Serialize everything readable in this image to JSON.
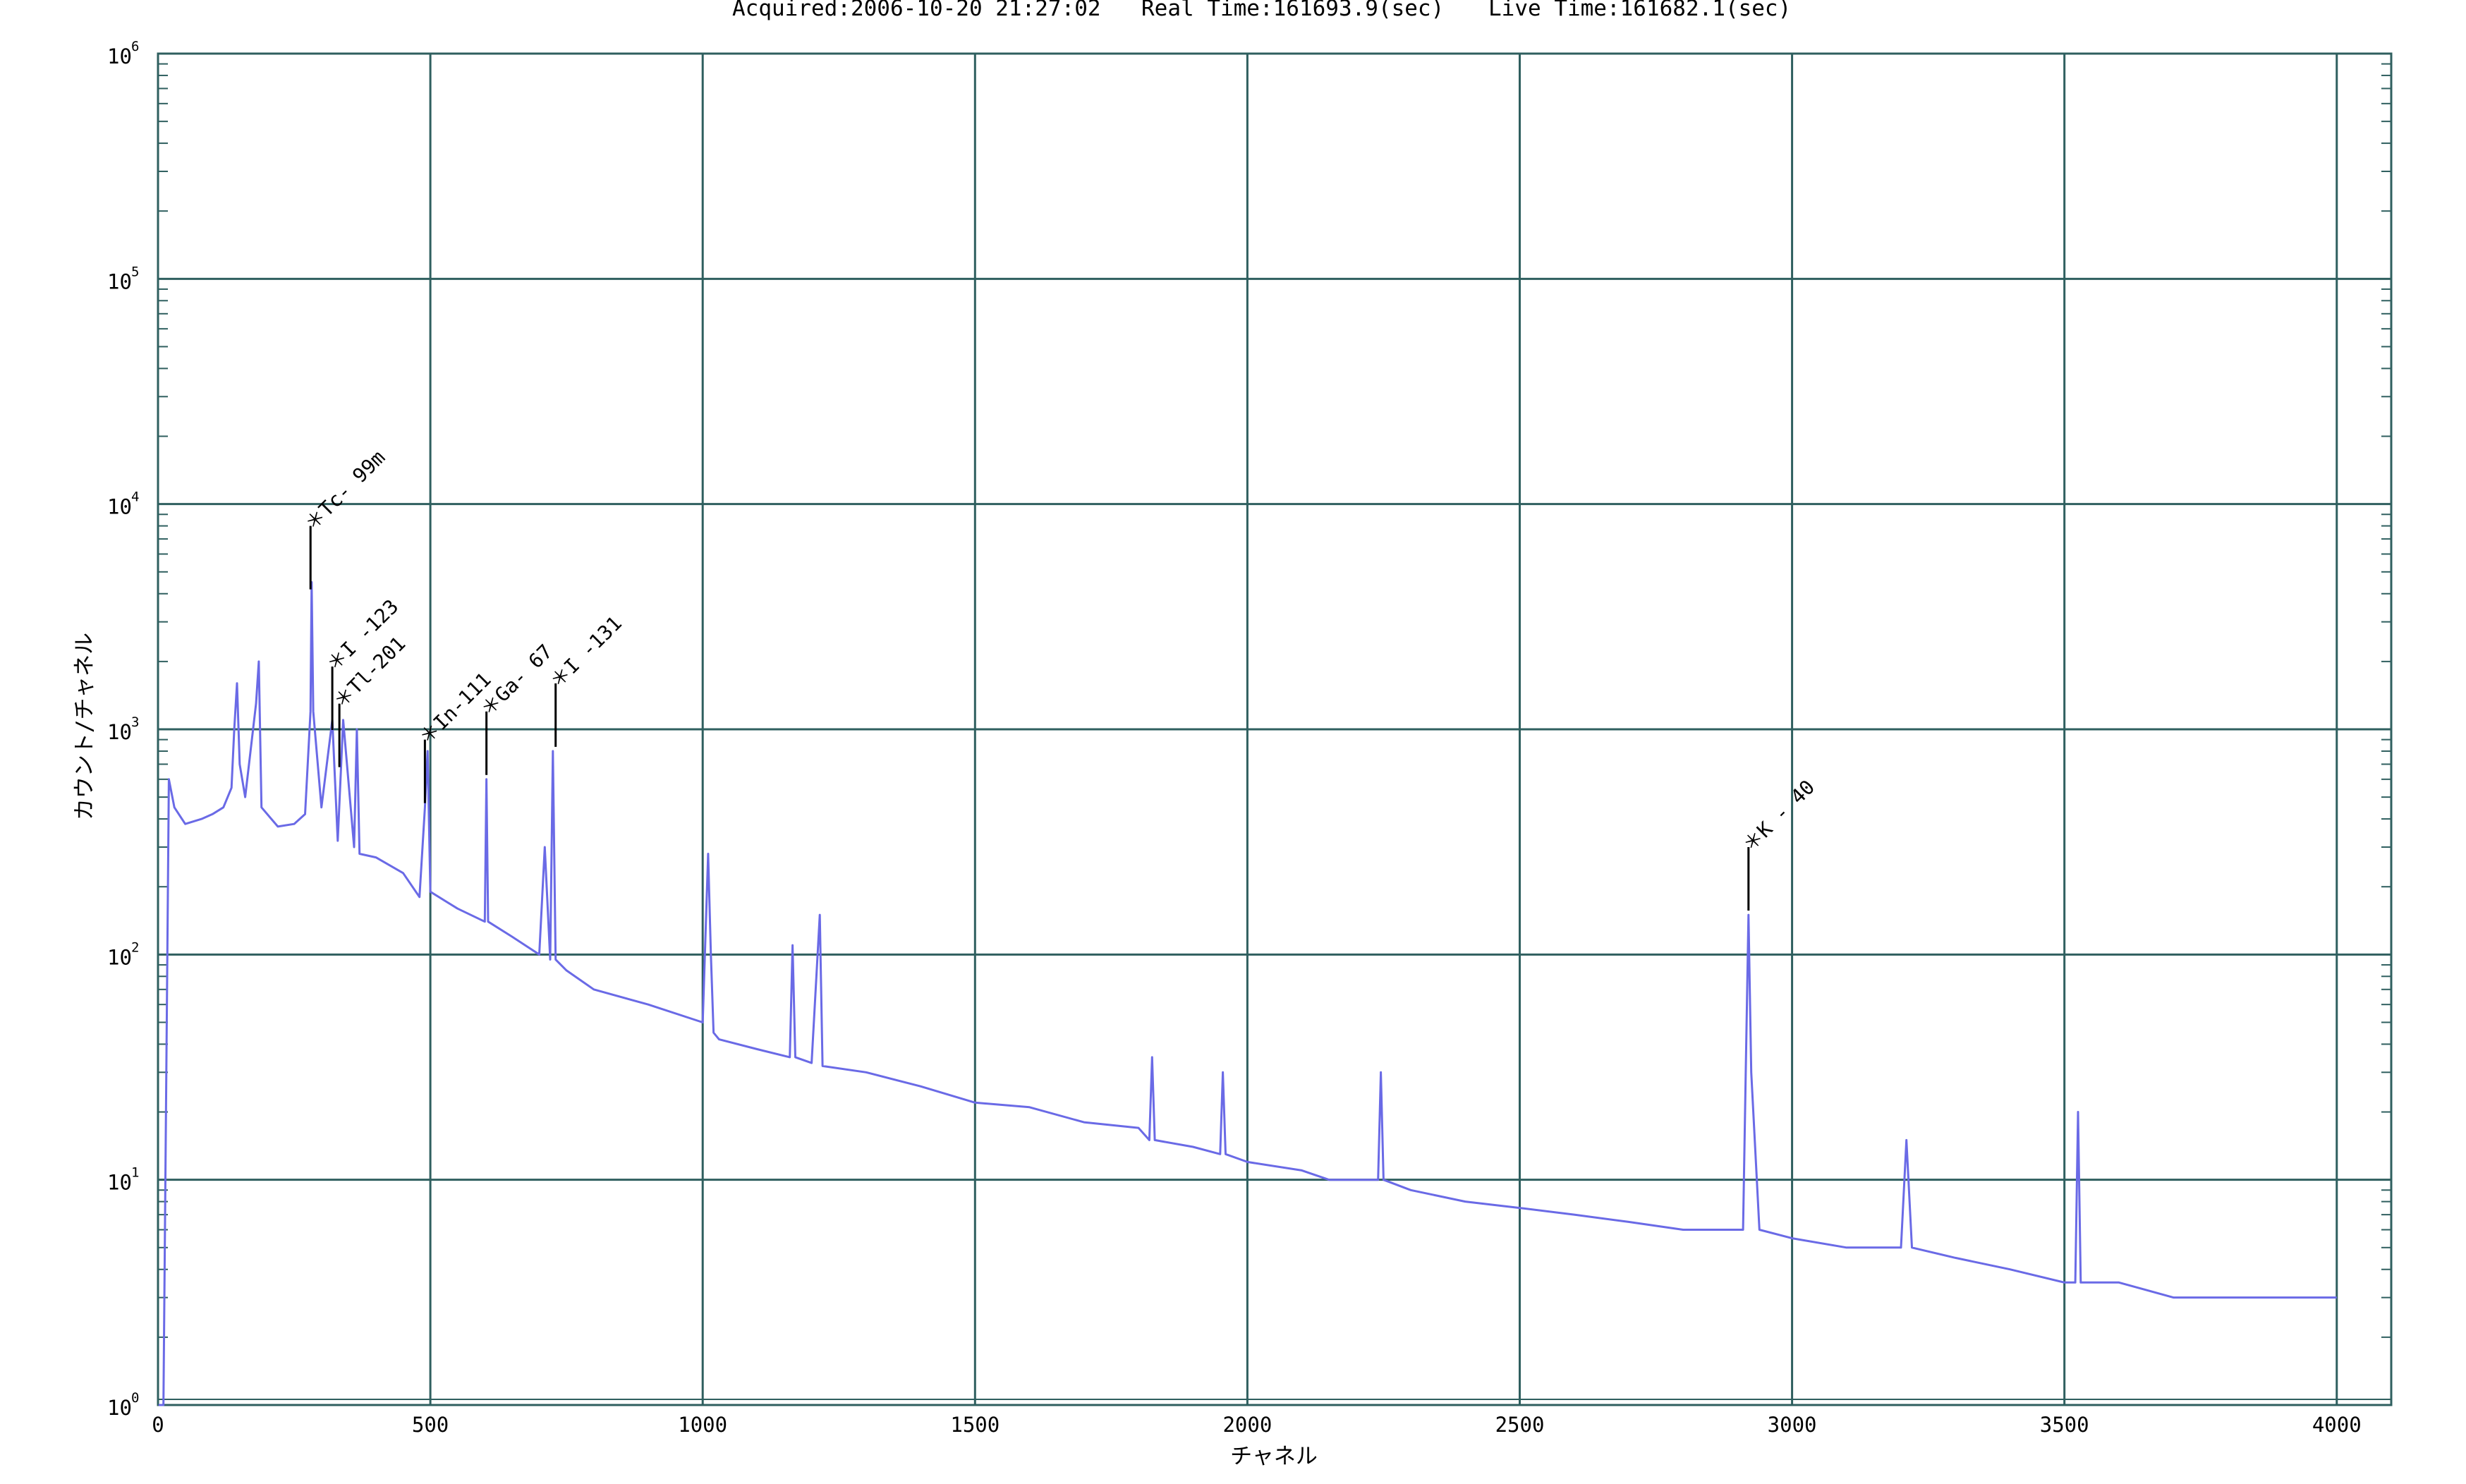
{
  "header": {
    "acquired": "Acquired:2006-10-20 21:27:02",
    "real_time": "Real Time:161693.9(sec)",
    "live_time": "Live Time:161682.1(sec)"
  },
  "chart_data": {
    "type": "line",
    "xlabel": "チャネル",
    "ylabel": "カウント/チャネル",
    "xlim": [
      0,
      4100
    ],
    "ylim": [
      1,
      1000000
    ],
    "y_scale": "log",
    "grid": true,
    "x_ticks": [
      "0",
      "500",
      "1000",
      "1500",
      "2000",
      "2500",
      "3000",
      "3500",
      "4000"
    ],
    "y_ticks": [
      {
        "base": "10",
        "exp": "0"
      },
      {
        "base": "10",
        "exp": "1"
      },
      {
        "base": "10",
        "exp": "2"
      },
      {
        "base": "10",
        "exp": "3"
      },
      {
        "base": "10",
        "exp": "4"
      },
      {
        "base": "10",
        "exp": "5"
      },
      {
        "base": "10",
        "exp": "6"
      }
    ],
    "colors": {
      "spectrum": "#6a6ae6",
      "grid": "#2f5f5f",
      "marker": "#000000"
    },
    "series": [
      {
        "x": [
          1,
          10,
          20,
          30,
          50,
          80,
          100,
          120,
          135,
          140,
          145,
          150,
          160,
          180,
          185,
          190,
          220,
          250,
          270,
          280,
          282,
          285,
          300,
          320,
          330,
          340,
          360,
          365,
          370,
          400,
          450,
          480,
          490,
          495,
          500,
          550,
          600,
          603,
          606,
          650,
          700,
          710,
          720,
          725,
          730,
          750,
          800,
          900,
          1000,
          1010,
          1015,
          1020,
          1030,
          1100,
          1160,
          1165,
          1170,
          1200,
          1215,
          1220,
          1300,
          1400,
          1500,
          1600,
          1700,
          1800,
          1820,
          1825,
          1830,
          1900,
          1950,
          1955,
          1960,
          2000,
          2100,
          2150,
          2200,
          2240,
          2245,
          2250,
          2300,
          2400,
          2500,
          2600,
          2700,
          2800,
          2850,
          2900,
          2910,
          2915,
          2920,
          2925,
          2940,
          3000,
          3100,
          3200,
          3210,
          3220,
          3300,
          3400,
          3500,
          3520,
          3525,
          3530,
          3600,
          3700,
          3800,
          3900,
          4000
        ],
        "y": [
          1,
          1,
          600,
          450,
          380,
          400,
          420,
          450,
          550,
          1000,
          1600,
          700,
          500,
          1300,
          2000,
          450,
          370,
          380,
          420,
          1200,
          4500,
          1200,
          450,
          1100,
          320,
          1100,
          300,
          1000,
          280,
          270,
          230,
          180,
          450,
          800,
          190,
          160,
          140,
          600,
          140,
          120,
          100,
          300,
          95,
          800,
          95,
          85,
          70,
          60,
          50,
          280,
          100,
          45,
          42,
          38,
          35,
          110,
          35,
          33,
          150,
          32,
          30,
          26,
          22,
          21,
          18,
          17,
          15,
          35,
          15,
          14,
          13,
          30,
          13,
          12,
          11,
          10,
          10,
          10,
          30,
          10,
          9,
          8,
          7.5,
          7,
          6.5,
          6,
          6,
          6,
          6,
          30,
          150,
          30,
          6,
          5.5,
          5,
          5,
          15,
          5,
          4.5,
          4,
          3.5,
          3.5,
          20,
          3.5,
          3.5,
          3,
          3,
          3,
          3
        ]
      }
    ],
    "peaks": [
      {
        "label": "＊Tc- 99m",
        "x": 280,
        "y": 8000
      },
      {
        "label": "＊I -123",
        "x": 320,
        "y": 1900
      },
      {
        "label": "＊Tl-201",
        "x": 333,
        "y": 1300
      },
      {
        "label": "＊In-111",
        "x": 490,
        "y": 900
      },
      {
        "label": "＊Ga- 67",
        "x": 603,
        "y": 1200
      },
      {
        "label": "＊I -131",
        "x": 730,
        "y": 1600
      },
      {
        "label": "＊K - 40",
        "x": 2920,
        "y": 300
      }
    ]
  }
}
